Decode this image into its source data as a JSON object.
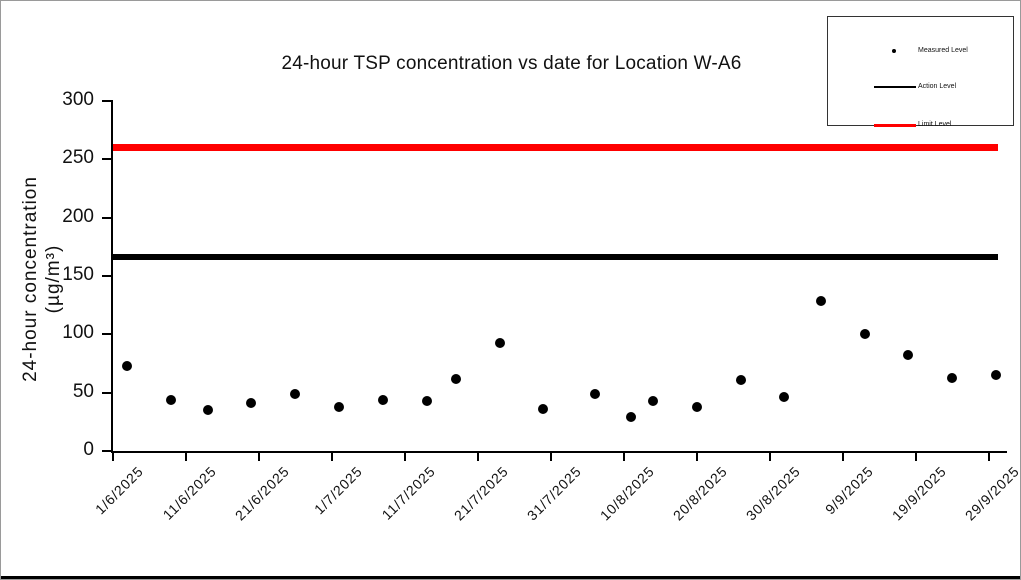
{
  "figure": {
    "title": "24-hour TSP concentration vs date for Location W-A6",
    "y_axis_label_line1": "24-hour concentration",
    "y_axis_label_line2": "(µg/m³)"
  },
  "colors": {
    "measured": "#000000",
    "action_level": "#000000",
    "limit_level": "#FF0000",
    "axis": "#000000",
    "background": "#FFFFFF"
  },
  "legend": {
    "position": "top-right",
    "items": [
      {
        "label": "Measured Level",
        "marker": "dot",
        "color": "#000000"
      },
      {
        "label": "Action Level",
        "marker": "line",
        "color": "#000000"
      },
      {
        "label": "Limit Level",
        "marker": "line",
        "color": "#FF0000"
      }
    ]
  },
  "chart_data": {
    "type": "scatter",
    "title": "24-hour TSP concentration vs date for Location W-A6",
    "xlabel": "",
    "ylabel": "24-hour concentration (µg/m³)",
    "ylim": [
      0,
      300
    ],
    "yticks": [
      0,
      50,
      100,
      150,
      200,
      250,
      300
    ],
    "xtick_labels": [
      "1/6/2025",
      "11/6/2025",
      "21/6/2025",
      "1/7/2025",
      "11/7/2025",
      "21/7/2025",
      "31/7/2025",
      "10/8/2025",
      "20/8/2025",
      "30/8/2025",
      "9/9/2025",
      "19/9/2025",
      "29/9/2025"
    ],
    "grid": false,
    "legend_position": "top-right",
    "series": [
      {
        "name": "Measured Level",
        "type": "scatter",
        "color": "#000000",
        "points": [
          {
            "date": "3/6/2025",
            "value": 73
          },
          {
            "date": "9/6/2025",
            "value": 44
          },
          {
            "date": "14/6/2025",
            "value": 35
          },
          {
            "date": "20/6/2025",
            "value": 41
          },
          {
            "date": "26/6/2025",
            "value": 49
          },
          {
            "date": "2/7/2025",
            "value": 38
          },
          {
            "date": "8/7/2025",
            "value": 44
          },
          {
            "date": "14/7/2025",
            "value": 43
          },
          {
            "date": "18/7/2025",
            "value": 62
          },
          {
            "date": "24/7/2025",
            "value": 93
          },
          {
            "date": "30/7/2025",
            "value": 36
          },
          {
            "date": "6/8/2025",
            "value": 49
          },
          {
            "date": "11/8/2025",
            "value": 29
          },
          {
            "date": "14/8/2025",
            "value": 43
          },
          {
            "date": "20/8/2025",
            "value": 38
          },
          {
            "date": "26/8/2025",
            "value": 61
          },
          {
            "date": "1/9/2025",
            "value": 46
          },
          {
            "date": "6/9/2025",
            "value": 129
          },
          {
            "date": "12/9/2025",
            "value": 100
          },
          {
            "date": "18/9/2025",
            "value": 82
          },
          {
            "date": "24/9/2025",
            "value": 63
          },
          {
            "date": "30/9/2025",
            "value": 65
          }
        ]
      },
      {
        "name": "Action Level",
        "type": "hline",
        "color": "#000000",
        "value": 166
      },
      {
        "name": "Limit Level",
        "type": "hline",
        "color": "#FF0000",
        "value": 260
      }
    ]
  }
}
